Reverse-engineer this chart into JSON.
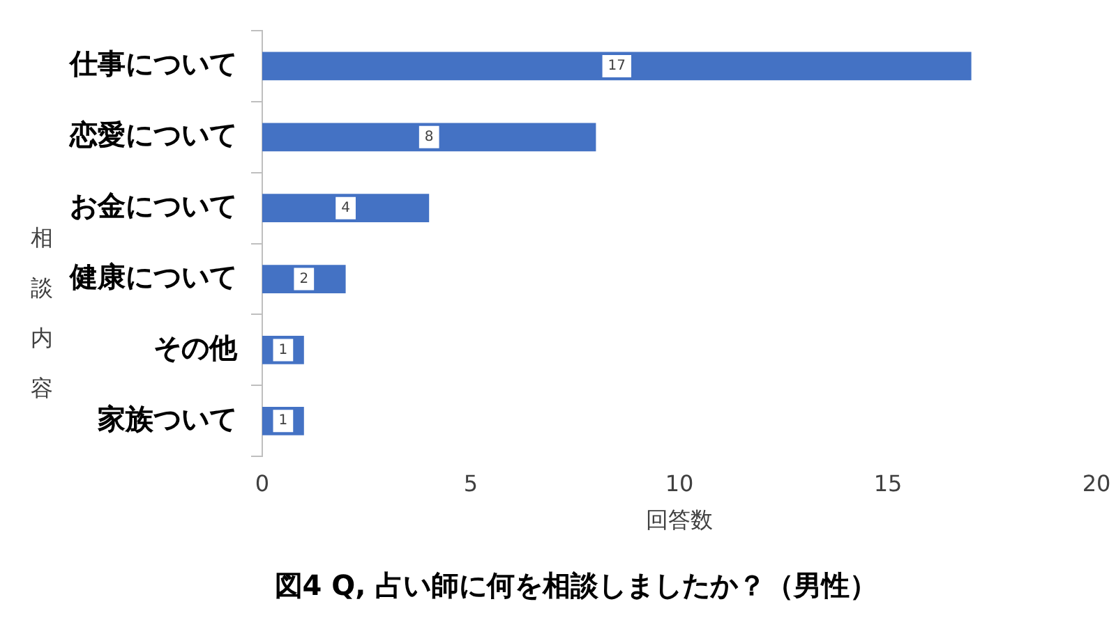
{
  "chart_data": {
    "type": "bar",
    "orientation": "horizontal",
    "title": "図4 Q, 占い師に何を相談しましたか？（男性）",
    "xlabel": "回答数",
    "ylabel": "相談内容",
    "categories": [
      "仕事について",
      "恋愛について",
      "お金について",
      "健康について",
      "その他",
      "家族ついて"
    ],
    "values": [
      17,
      8,
      4,
      2,
      1,
      1
    ],
    "color": "#4472c4",
    "xlim": [
      0,
      20
    ],
    "xticks": [
      0,
      5,
      10,
      15,
      20
    ],
    "grid": false,
    "legend": false,
    "data_labels": true
  }
}
